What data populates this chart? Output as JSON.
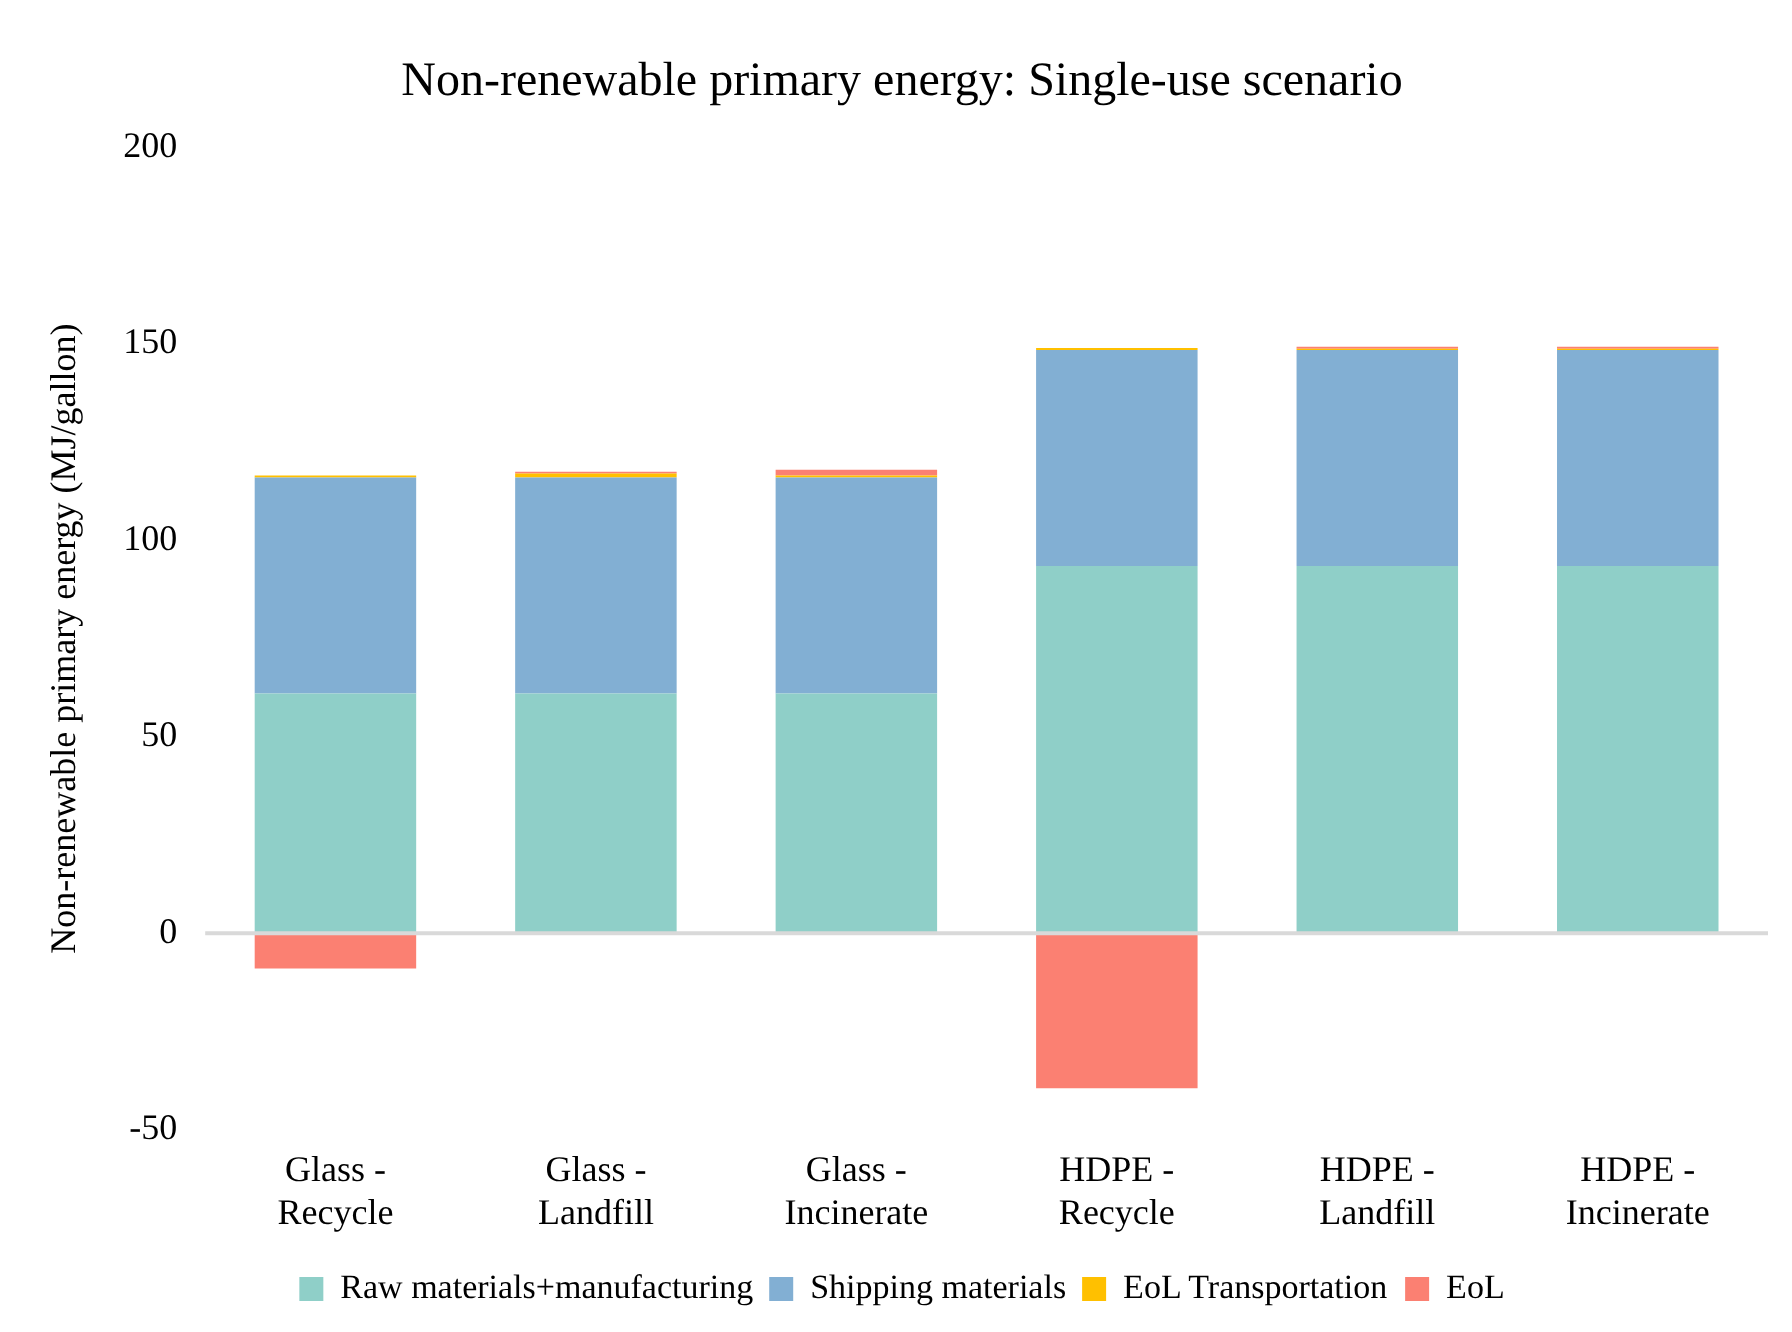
{
  "chart_data": {
    "type": "bar",
    "title": "Non-renewable primary energy: Single-use scenario",
    "ylabel": "Non-renewable primary energy (MJ/gallon)",
    "categories": [
      "Glass - Recycle",
      "Glass - Landfill",
      "Glass - Incinerate",
      "HDPE - Recycle",
      "HDPE - Landfill",
      "HDPE - Incinerate"
    ],
    "stacked": true,
    "series": [
      {
        "name": "Raw materials+manufacturing",
        "color": "#8fcfc8",
        "values": [
          61,
          61,
          61,
          93.5,
          93.5,
          93.5
        ]
      },
      {
        "name": "Shipping materials",
        "color": "#82afd3",
        "values": [
          55,
          55,
          55,
          55,
          55,
          55
        ]
      },
      {
        "name": "EoL Transportation",
        "color": "#ffc000",
        "values": [
          0.5,
          1,
          0.5,
          0.5,
          0.3,
          0.3
        ]
      },
      {
        "name": "EoL",
        "color": "#fb8072",
        "values": [
          -9,
          0.5,
          1.5,
          -39.5,
          0.5,
          0.5
        ]
      }
    ],
    "ylim": [
      -50,
      200
    ],
    "yticks": [
      -50,
      0,
      50,
      100,
      150,
      200
    ],
    "grid": false,
    "ref_lines": [
      {
        "axis": "y",
        "value": 0,
        "color": "#d9d9d9"
      }
    ],
    "legend": "bottom"
  }
}
